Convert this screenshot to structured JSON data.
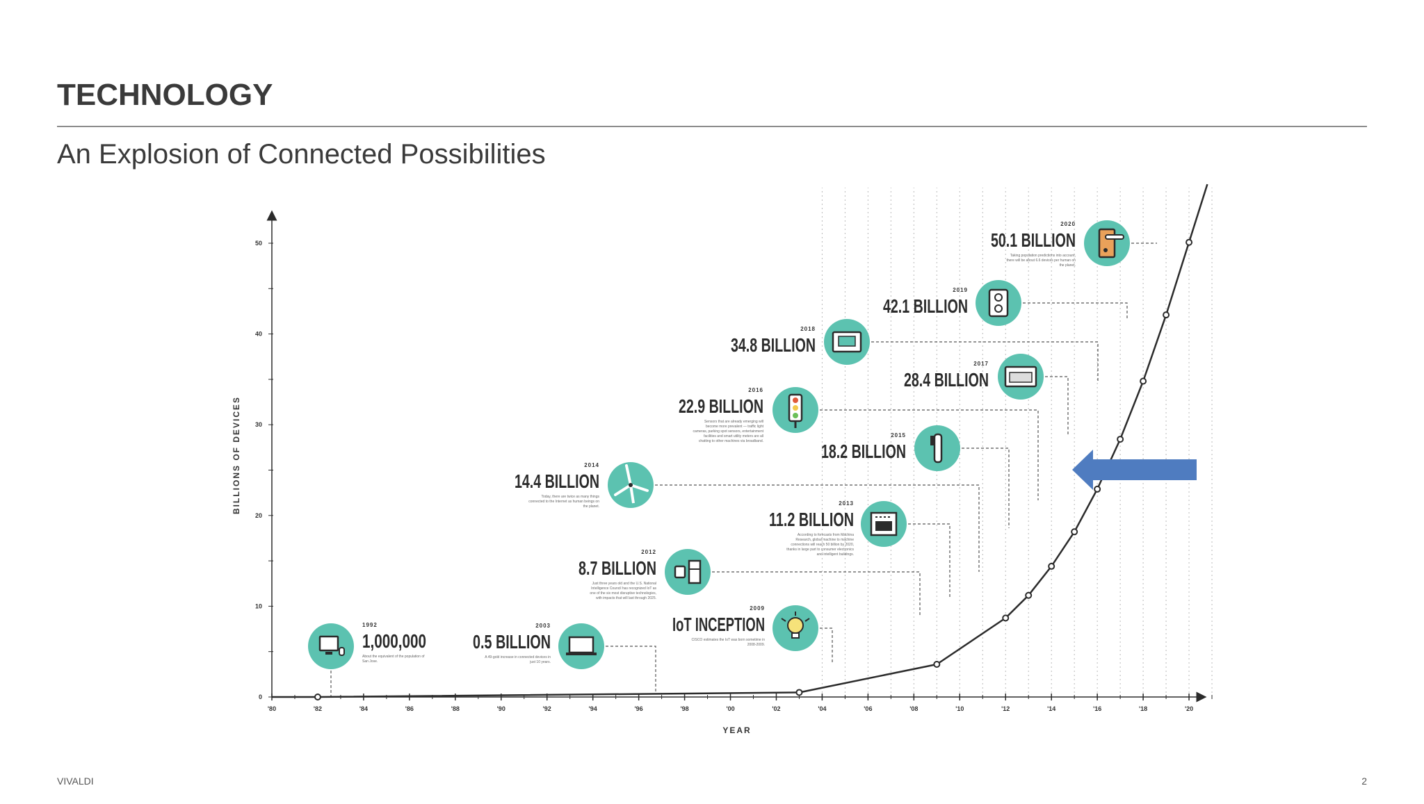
{
  "slide": {
    "title": "TECHNOLOGY",
    "subtitle": "An Explosion of Connected Possibilities",
    "footer_brand": "VIVALDI",
    "page_number": "2"
  },
  "colors": {
    "accent_teal": "#5cc2b0",
    "line": "#2b2b2b",
    "arrow_blue": "#4f7cc0"
  },
  "chart_data": {
    "type": "line",
    "xlabel": "YEAR",
    "ylabel": "BILLIONS OF DEVICES",
    "xlim": [
      1980,
      2021
    ],
    "ylim": [
      0,
      53
    ],
    "x_ticks": [
      {
        "year": 1980,
        "label": "'80"
      },
      {
        "year": 1982,
        "label": "'82"
      },
      {
        "year": 1984,
        "label": "'84"
      },
      {
        "year": 1986,
        "label": "'86"
      },
      {
        "year": 1988,
        "label": "'88"
      },
      {
        "year": 1990,
        "label": "'90"
      },
      {
        "year": 1992,
        "label": "'92"
      },
      {
        "year": 1994,
        "label": "'94"
      },
      {
        "year": 1996,
        "label": "'96"
      },
      {
        "year": 1998,
        "label": "'98"
      },
      {
        "year": 2000,
        "label": "'00"
      },
      {
        "year": 2002,
        "label": "'02"
      },
      {
        "year": 2004,
        "label": "'04"
      },
      {
        "year": 2006,
        "label": "'06"
      },
      {
        "year": 2008,
        "label": "'08"
      },
      {
        "year": 2010,
        "label": "'10"
      },
      {
        "year": 2012,
        "label": "'12"
      },
      {
        "year": 2014,
        "label": "'14"
      },
      {
        "year": 2016,
        "label": "'16"
      },
      {
        "year": 2018,
        "label": "'18"
      },
      {
        "year": 2020,
        "label": "'20"
      }
    ],
    "y_ticks": [
      {
        "value": 0,
        "label": "0"
      },
      {
        "value": 10,
        "label": "10"
      },
      {
        "value": 20,
        "label": "20"
      },
      {
        "value": 30,
        "label": "30"
      },
      {
        "value": 40,
        "label": "40"
      },
      {
        "value": 50,
        "label": "50"
      }
    ],
    "series": [
      {
        "x": [
          1980,
          1982,
          2003,
          2009,
          2012,
          2013,
          2014,
          2015,
          2016,
          2017,
          2018,
          2019,
          2020,
          2020.8
        ],
        "y": [
          0,
          0.001,
          0.5,
          3.6,
          8.7,
          11.2,
          14.4,
          18.2,
          22.9,
          28.4,
          34.8,
          42.1,
          50.1,
          56.5
        ]
      }
    ],
    "annotations": [
      {
        "year": "1992",
        "point_x": 1982,
        "value": 0.001,
        "label": "1,000,000",
        "icon": "computer-icon",
        "note": "About the equivalent of the population of San Jose."
      },
      {
        "year": "2003",
        "point_x": 2003,
        "value": 0.5,
        "label": "0.5 BILLION",
        "icon": "laptop-icon",
        "note": "A 49-gold increase in connected devices in just 10 years."
      },
      {
        "year": "2009",
        "point_x": 2009,
        "value": 3.6,
        "label": "IoT INCEPTION",
        "icon": "lightbulb-icon",
        "note": "CISCO estimates the IoT was born sometime in 2008-2009."
      },
      {
        "year": "2012",
        "point_x": 2012,
        "value": 8.7,
        "label": "8.7 BILLION",
        "icon": "watch-fridge-icon",
        "note": "Just three years old and the U.S. National Intelligence Council has recognized IoT as one of the six most disruptive technologies, with impacts that will last through 2025."
      },
      {
        "year": "2013",
        "point_x": 2013,
        "value": 11.2,
        "label": "11.2 BILLION",
        "icon": "oven-icon",
        "note": "According to forecasts from Machina Research, global machine to machine connections will reach 50 billion by 2020, thanks in large part to consumer electronics and intelligent buildings."
      },
      {
        "year": "2014",
        "point_x": 2014,
        "value": 14.4,
        "label": "14.4 BILLION",
        "icon": "wind-turbine-icon",
        "note": "Today, there are twice as many things connected to the Internet as human beings on the planet."
      },
      {
        "year": "2015",
        "point_x": 2015,
        "value": 18.2,
        "label": "18.2 BILLION",
        "icon": "toothbrush-icon",
        "note": ""
      },
      {
        "year": "2016",
        "point_x": 2016,
        "value": 22.9,
        "label": "22.9 BILLION",
        "icon": "traffic-light-icon",
        "note": "Sensors that are already emerging will become more prevalent — traffic light cameras, parking spot sensors, entertainment facilities and smart utility meters are all chatting to other machines via broadband."
      },
      {
        "year": "2017",
        "point_x": 2017,
        "value": 28.4,
        "label": "28.4 BILLION",
        "icon": "appliance-icon",
        "note": ""
      },
      {
        "year": "2018",
        "point_x": 2018,
        "value": 34.8,
        "label": "34.8 BILLION",
        "icon": "thermostat-icon",
        "note": ""
      },
      {
        "year": "2019",
        "point_x": 2019,
        "value": 42.1,
        "label": "42.1 BILLION",
        "icon": "outlet-icon",
        "note": ""
      },
      {
        "year": "2020",
        "point_x": 2020,
        "value": 50.1,
        "label": "50.1 BILLION",
        "icon": "door-handle-icon",
        "note": "Taking population predictions into account, there will be about 6.6 devices per human on the planet."
      }
    ]
  }
}
